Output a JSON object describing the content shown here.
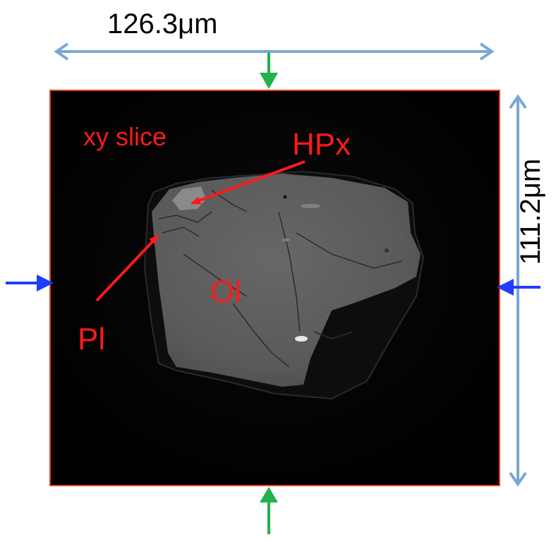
{
  "dimensions": {
    "width": "126.3μm",
    "height": "111.2μm"
  },
  "labels": {
    "slice": "xy slice",
    "hpx": "HPx",
    "ol": "Ol",
    "pl": "Pl"
  },
  "colors": {
    "dimension_arrow": "#7aa7d4",
    "annotation": "#ff1a1a",
    "horizontal_marker": "#1f3cff",
    "vertical_marker": "#22b24c",
    "frame": "#e8402a",
    "background": "#000000",
    "grain": "#5b5b5b"
  }
}
